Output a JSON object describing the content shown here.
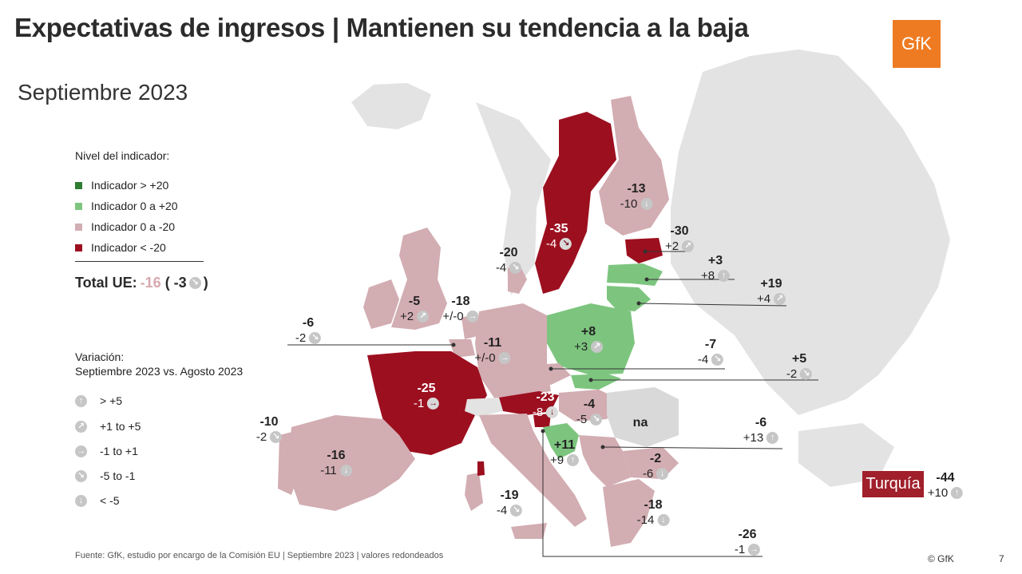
{
  "title": "Expectativas de ingresos | Mantienen su tendencia a la baja",
  "subtitle": "Septiembre 2023",
  "logo": "GfK",
  "colors": {
    "gt20": "#2e7d32",
    "0to20": "#7dc57f",
    "0toMinus20": "#d2adb2",
    "ltMinus20": "#9c0f1f",
    "noData": "#d9d9d9",
    "nonEu": "#e3e3e3"
  },
  "legend": {
    "title": "Nivel del indicador:",
    "items": [
      {
        "label": "Indicador > +20",
        "color": "#2e7d32"
      },
      {
        "label": "Indicador 0 a +20",
        "color": "#7dc57f"
      },
      {
        "label": "Indicador 0 a -20",
        "color": "#d2adb2"
      },
      {
        "label": "Indicador < -20",
        "color": "#9c0f1f"
      }
    ]
  },
  "total": {
    "label": "Total UE:",
    "value": "-16",
    "change": "( -3",
    "close": ")",
    "icon": "arrow-down-right-icon"
  },
  "variation": {
    "title_line1": "Variación:",
    "title_line2": "Septiembre 2023 vs. Agosto 2023",
    "items": [
      {
        "label": "> +5",
        "icon": "arrow-up-icon",
        "glyph": "↑"
      },
      {
        "label": "+1 to +5",
        "icon": "arrow-up-right-icon",
        "glyph": "↗"
      },
      {
        "label": "-1 to +1",
        "icon": "arrow-right-icon",
        "glyph": "→"
      },
      {
        "label": "-5 to -1",
        "icon": "arrow-down-right-icon",
        "glyph": "↘"
      },
      {
        "label": "< -5",
        "icon": "arrow-down-icon",
        "glyph": "↓"
      }
    ]
  },
  "countries": [
    {
      "id": "fi",
      "value": "-13",
      "change": "-10",
      "glyph": "↓"
    },
    {
      "id": "se",
      "value": "-35",
      "change": "-4",
      "glyph": "↘"
    },
    {
      "id": "ee",
      "value": "-30",
      "change": "+2",
      "glyph": "↗"
    },
    {
      "id": "lv",
      "value": "+3",
      "change": "+8",
      "glyph": "↑"
    },
    {
      "id": "lt",
      "value": "+19",
      "change": "+4",
      "glyph": "↗"
    },
    {
      "id": "dk",
      "value": "-20",
      "change": "-4",
      "glyph": "↘"
    },
    {
      "id": "ie",
      "value": "-5",
      "change": "+2",
      "glyph": "↗"
    },
    {
      "id": "nl",
      "value": "-18",
      "change": "+/-0",
      "glyph": "→"
    },
    {
      "id": "be",
      "value": "-6",
      "change": "-2",
      "glyph": "↘"
    },
    {
      "id": "de",
      "value": "-11",
      "change": "+/-0",
      "glyph": "→"
    },
    {
      "id": "pl",
      "value": "+8",
      "change": "+3",
      "glyph": "↗"
    },
    {
      "id": "cz",
      "value": "-7",
      "change": "-4",
      "glyph": "↘"
    },
    {
      "id": "sk",
      "value": "+5",
      "change": "-2",
      "glyph": "↘"
    },
    {
      "id": "fr",
      "value": "-25",
      "change": "-1",
      "glyph": "→"
    },
    {
      "id": "at",
      "value": "-23",
      "change": "-8",
      "glyph": "↓"
    },
    {
      "id": "hu",
      "value": "-4",
      "change": "-5",
      "glyph": "↘"
    },
    {
      "id": "ro",
      "value": "na",
      "change": "",
      "glyph": ""
    },
    {
      "id": "pt",
      "value": "-10",
      "change": "-2",
      "glyph": "↘"
    },
    {
      "id": "es",
      "value": "-16",
      "change": "-11",
      "glyph": "↓"
    },
    {
      "id": "hr",
      "value": "+11",
      "change": "+9",
      "glyph": "↑"
    },
    {
      "id": "bg",
      "value": "-6",
      "change": "+13",
      "glyph": "↑"
    },
    {
      "id": "bg2",
      "value": "-2",
      "change": "-6",
      "glyph": "↓"
    },
    {
      "id": "it",
      "value": "-19",
      "change": "-4",
      "glyph": "↘"
    },
    {
      "id": "gr",
      "value": "-18",
      "change": "-14",
      "glyph": "↓"
    },
    {
      "id": "si",
      "value": "-26",
      "change": "-1",
      "glyph": "→"
    },
    {
      "id": "tr",
      "value": "-44",
      "change": "+10",
      "glyph": "↑"
    }
  ],
  "turkey_label": "Turquía",
  "source": "Fuente: GfK, estudio por encargo de la Comisión EU | Septiembre 2023 | valores redondeados",
  "copyright": "© GfK",
  "page_number": "7"
}
